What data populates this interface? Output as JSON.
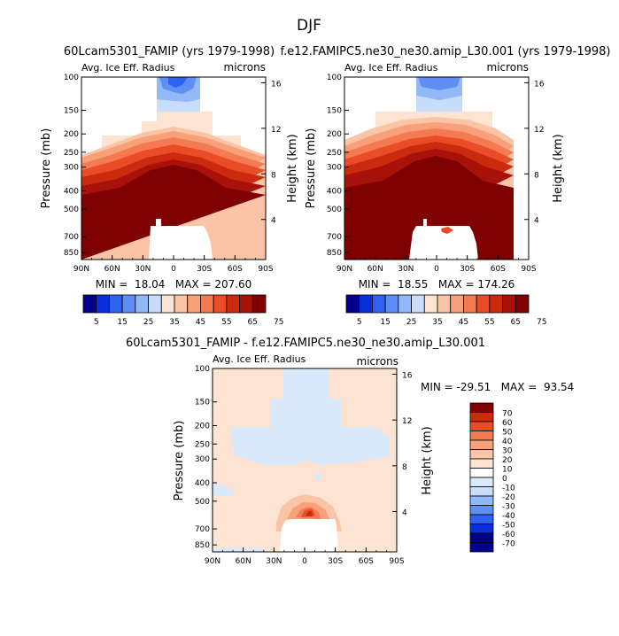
{
  "page_title": "DJF",
  "colors": {
    "abs_scale": [
      "#00008c",
      "#0a2fd8",
      "#2f62f0",
      "#5f8ff4",
      "#92b8f8",
      "#c8dcfb",
      "#fde3d2",
      "#fbc4a6",
      "#f8a07a",
      "#f47a52",
      "#ea4c28",
      "#cc2a0f",
      "#a8120a",
      "#7f0000"
    ],
    "diff_scale": [
      "#00008c",
      "#0a2fd8",
      "#2f62f0",
      "#5f8ff4",
      "#92b8f8",
      "#c8dcfb",
      "#dbe9fc",
      "#ffffff",
      "#fde3d2",
      "#fbc4a6",
      "#f8a07a",
      "#f47a52",
      "#ea4c28",
      "#cc2a0f",
      "#7f0000"
    ]
  },
  "chart_data": [
    {
      "type": "heatmap",
      "title": "60Lcam5301_FAMIP (yrs 1979-1998)",
      "subtitle_left": "Avg. Ice Eff. Radius",
      "subtitle_right": "microns",
      "ylabel": "Pressure (mb)",
      "ylabel_right": "Height (km)",
      "x_ticks": [
        "90N",
        "60N",
        "30N",
        "0",
        "30S",
        "60S",
        "90S"
      ],
      "y_ticks": [
        "100",
        "150",
        "200",
        "250",
        "300",
        "400",
        "500",
        "700",
        "850"
      ],
      "y_ticks_right": [
        "16",
        "12",
        "8",
        "4"
      ],
      "stats": "MIN =  18.04   MAX = 207.60",
      "min": 18.04,
      "max": 207.6,
      "ylim": [
        1000,
        100
      ],
      "xlim": [
        90,
        -90
      ]
    },
    {
      "type": "heatmap",
      "title": "f.e12.FAMIPC5.ne30_ne30.amip_L30.001 (yrs 1979-1998)",
      "subtitle_left": "Avg. Ice Eff. Radius",
      "subtitle_right": "microns",
      "ylabel": "Pressure (mb)",
      "ylabel_right": "Height (km)",
      "x_ticks": [
        "90N",
        "60N",
        "30N",
        "0",
        "30S",
        "60S",
        "90S"
      ],
      "y_ticks": [
        "100",
        "150",
        "200",
        "250",
        "300",
        "400",
        "500",
        "700",
        "850"
      ],
      "y_ticks_right": [
        "16",
        "12",
        "8",
        "4"
      ],
      "stats": "MIN =  18.55   MAX = 174.26",
      "min": 18.55,
      "max": 174.26,
      "ylim": [
        1000,
        100
      ],
      "xlim": [
        90,
        -90
      ]
    },
    {
      "type": "heatmap",
      "title": "60Lcam5301_FAMIP - f.e12.FAMIPC5.ne30_ne30.amip_L30.001",
      "subtitle_left": "Avg. Ice Eff. Radius",
      "subtitle_right": "microns",
      "ylabel": "Pressure (mb)",
      "ylabel_right": "Height (km)",
      "x_ticks": [
        "90N",
        "60N",
        "30N",
        "0",
        "30S",
        "60S",
        "90S"
      ],
      "y_ticks": [
        "100",
        "150",
        "200",
        "250",
        "300",
        "400",
        "500",
        "700",
        "850"
      ],
      "y_ticks_right": [
        "16",
        "12",
        "8",
        "4"
      ],
      "stats": "MIN = -29.51   MAX =  93.54",
      "min": -29.51,
      "max": 93.54,
      "ylim": [
        1000,
        100
      ],
      "xlim": [
        90,
        -90
      ]
    }
  ],
  "colorbar_abs": {
    "labels": [
      "5",
      "15",
      "25",
      "35",
      "45",
      "55",
      "65",
      "75"
    ]
  },
  "colorbar_diff": {
    "labels": [
      "70",
      "60",
      "50",
      "40",
      "30",
      "20",
      "10",
      "0",
      "-10",
      "-20",
      "-30",
      "-40",
      "-50",
      "-60",
      "-70"
    ]
  }
}
